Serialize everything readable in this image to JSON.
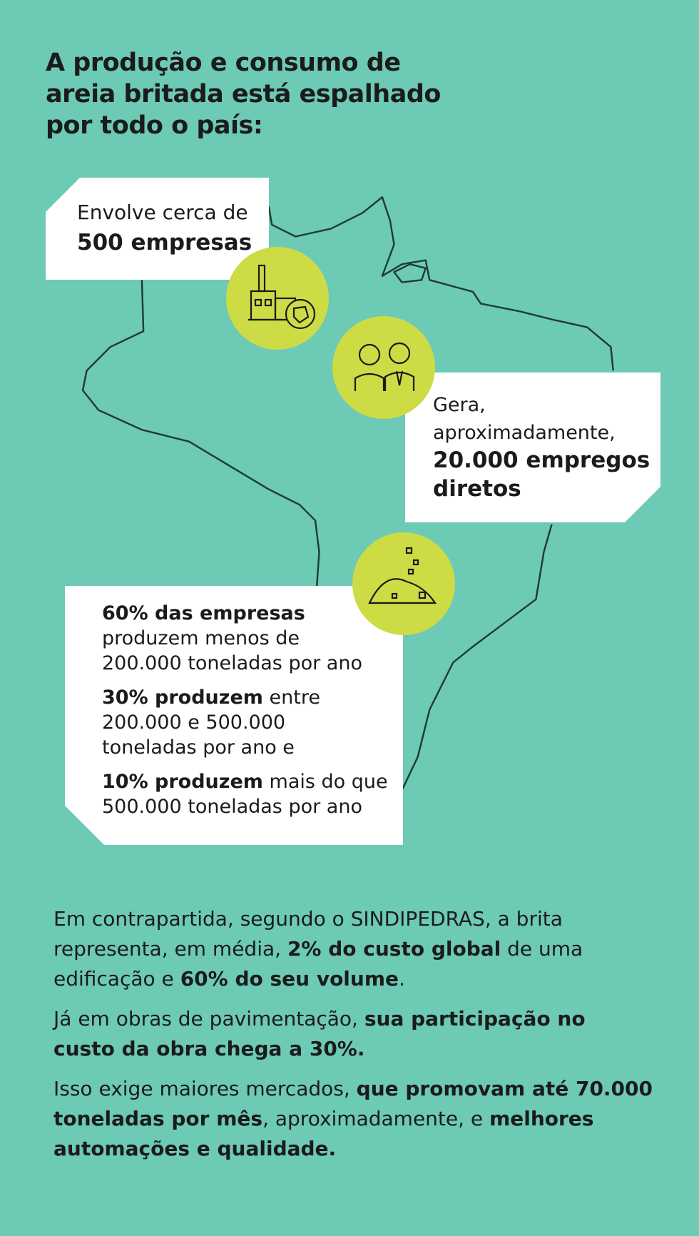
{
  "title": [
    "A produção e consumo de",
    "areia britada está espalhado",
    "por todo o país:"
  ],
  "cards": [
    {
      "paragraphs": [
        [
          [
            {
              "text": "Envolve cerca de"
            }
          ],
          [
            {
              "text": "500 empresas",
              "bold": true
            }
          ]
        ]
      ]
    },
    {
      "paragraphs": [
        [
          [
            {
              "text": "Gera,"
            }
          ],
          [
            {
              "text": "aproximadamente,"
            }
          ],
          [
            {
              "text": "20.000 empregos",
              "bold": true
            }
          ],
          [
            {
              "text": "diretos",
              "bold": true
            }
          ]
        ]
      ]
    },
    {
      "paragraphs": [
        [
          [
            {
              "text": "60% das empresas",
              "bold": true
            }
          ],
          [
            {
              "text": "produzem menos de"
            }
          ],
          [
            {
              "text": "200.000 toneladas por ano"
            }
          ]
        ],
        [
          [
            {
              "text": "30% produzem",
              "bold": true
            },
            {
              "text": " entre"
            }
          ],
          [
            {
              "text": "200.000 e 500.000"
            }
          ],
          [
            {
              "text": "toneladas por ano e"
            }
          ]
        ],
        [
          [
            {
              "text": "10% produzem",
              "bold": true
            },
            {
              "text": " mais do que"
            }
          ],
          [
            {
              "text": "500.000 toneladas por ano"
            }
          ]
        ]
      ]
    }
  ],
  "footer": {
    "paragraphs": [
      [
        [
          {
            "text": "Em contrapartida, segundo o SINDIPEDRAS, a brita"
          }
        ],
        [
          {
            "text": "representa, em média, "
          },
          {
            "text": "2% do custo global",
            "bold": true
          },
          {
            "text": " de uma"
          }
        ],
        [
          {
            "text": "edificação e "
          },
          {
            "text": "60% do seu volume",
            "bold": true
          },
          {
            "text": "."
          }
        ]
      ],
      [
        [
          {
            "text": "Já em obras de pavimentação, "
          },
          {
            "text": "sua participação no",
            "bold": true
          }
        ],
        [
          {
            "text": "custo da obra chega a 30%.",
            "bold": true
          }
        ]
      ],
      [
        [
          {
            "text": "Isso exige maiores mercados, "
          },
          {
            "text": "que promovam até 70.000",
            "bold": true
          }
        ],
        [
          {
            "text": "toneladas por mês",
            "bold": true
          },
          {
            "text": ", aproximadamente, e "
          },
          {
            "text": "melhores",
            "bold": true
          }
        ],
        [
          {
            "text": "automações e qualidade.",
            "bold": true
          }
        ]
      ]
    ]
  }
}
